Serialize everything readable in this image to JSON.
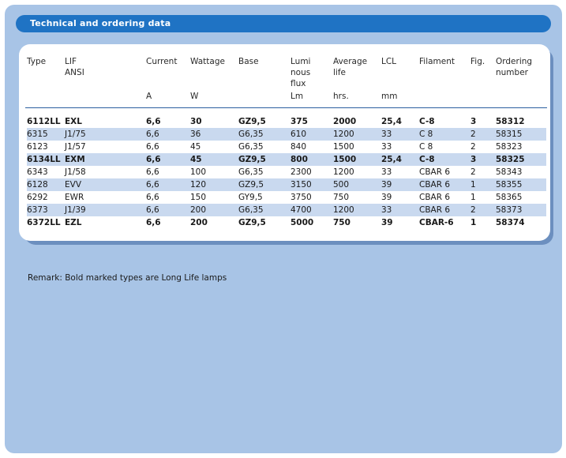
{
  "title": "Technical and ordering data",
  "columns": [
    {
      "key": "type",
      "label": "Type",
      "unit": ""
    },
    {
      "key": "lif",
      "label": "LIF\nANSI",
      "unit": ""
    },
    {
      "key": "current",
      "label": "Current",
      "unit": "A"
    },
    {
      "key": "wattage",
      "label": "Wattage",
      "unit": "W"
    },
    {
      "key": "base",
      "label": "Base",
      "unit": ""
    },
    {
      "key": "flux",
      "label": "Lumi\nnous\nflux",
      "unit": "Lm"
    },
    {
      "key": "life",
      "label": "Average\nlife",
      "unit": "hrs."
    },
    {
      "key": "lcl",
      "label": "LCL",
      "unit": "mm"
    },
    {
      "key": "filament",
      "label": "Filament",
      "unit": ""
    },
    {
      "key": "fig",
      "label": "Fig.",
      "unit": ""
    },
    {
      "key": "order",
      "label": "Ordering\nnumber",
      "unit": ""
    }
  ],
  "rows": [
    {
      "bold": true,
      "cells": [
        "6112LL",
        "EXL",
        "6,6",
        "30",
        "GZ9,5",
        "375",
        "2000",
        "25,4",
        "C-8",
        "3",
        "58312"
      ]
    },
    {
      "bold": false,
      "cells": [
        "6315",
        "J1/75",
        "6,6",
        "36",
        "G6,35",
        "610",
        "1200",
        "33",
        "C 8",
        "2",
        "58315"
      ]
    },
    {
      "bold": false,
      "cells": [
        "6123",
        "J1/57",
        "6,6",
        "45",
        "G6,35",
        "840",
        "1500",
        "33",
        "C 8",
        "2",
        "58323"
      ]
    },
    {
      "bold": true,
      "cells": [
        "6134LL",
        "EXM",
        "6,6",
        "45",
        "GZ9,5",
        "800",
        "1500",
        "25,4",
        "C-8",
        "3",
        "58325"
      ]
    },
    {
      "bold": false,
      "cells": [
        "6343",
        "J1/58",
        "6,6",
        "100",
        "G6,35",
        "2300",
        "1200",
        "33",
        "CBAR 6",
        "2",
        "58343"
      ]
    },
    {
      "bold": false,
      "cells": [
        "6128",
        "EVV",
        "6,6",
        "120",
        "GZ9,5",
        "3150",
        "500",
        "39",
        "CBAR 6",
        "1",
        "58355"
      ]
    },
    {
      "bold": false,
      "cells": [
        "6292",
        "EWR",
        "6,6",
        "150",
        "GY9,5",
        "3750",
        "750",
        "39",
        "CBAR 6",
        "1",
        "58365"
      ]
    },
    {
      "bold": false,
      "cells": [
        "6373",
        "J1/39",
        "6,6",
        "200",
        "G6,35",
        "4700",
        "1200",
        "33",
        "CBAR 6",
        "2",
        "58373"
      ]
    },
    {
      "bold": true,
      "cells": [
        "6372LL",
        "EZL",
        "6,6",
        "200",
        "GZ9,5",
        "5000",
        "750",
        "39",
        "CBAR-6",
        "1",
        "58374"
      ]
    }
  ],
  "remark": "Remark: Bold marked types are Long Life lamps",
  "colors": {
    "panel": "#a8c4e6",
    "title_bar": "#1f73c4",
    "row_shade": "#c9d9ef",
    "rule": "#2b5fa0"
  }
}
